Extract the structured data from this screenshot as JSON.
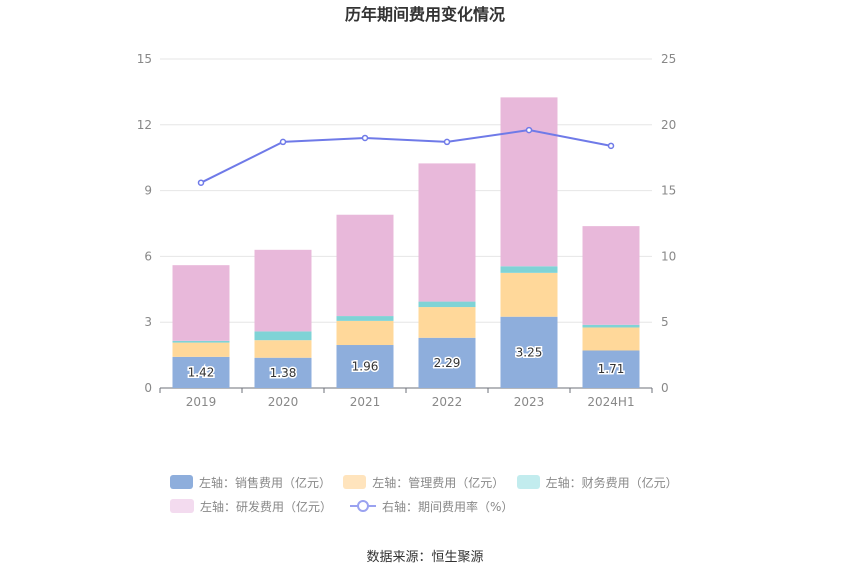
{
  "chart_data": {
    "type": "bar",
    "title": "历年期间费用变化情况",
    "categories": [
      "2019",
      "2020",
      "2021",
      "2022",
      "2023",
      "2024H1"
    ],
    "series": [
      {
        "name": "左轴：销售费用（亿元）",
        "axis": "left",
        "color": "#8eaedc",
        "values": [
          1.42,
          1.38,
          1.96,
          2.29,
          3.25,
          1.71
        ],
        "labels": [
          "1.42",
          "1.38",
          "1.96",
          "2.29",
          "3.25",
          "1.71"
        ]
      },
      {
        "name": "左轴：管理费用（亿元）",
        "axis": "left",
        "color": "#ffd89a",
        "values": [
          0.65,
          0.8,
          1.1,
          1.4,
          2.0,
          1.05
        ]
      },
      {
        "name": "左轴：财务费用（亿元）",
        "axis": "left",
        "color": "#7fd3d6",
        "values": [
          0.08,
          0.4,
          0.22,
          0.25,
          0.3,
          0.12
        ]
      },
      {
        "name": "左轴：研发费用（亿元）",
        "axis": "left",
        "color": "#e8b8da",
        "values": [
          3.45,
          3.72,
          4.62,
          6.3,
          7.7,
          4.5
        ]
      },
      {
        "name": "右轴：期间费用率（%）",
        "axis": "right",
        "type": "line",
        "color": "#6f7ae8",
        "values": [
          15.6,
          18.7,
          19.0,
          18.7,
          19.6,
          18.4
        ]
      }
    ],
    "left_axis": {
      "ylim": [
        0,
        15
      ],
      "ticks": [
        "0",
        "3",
        "6",
        "9",
        "12",
        "15"
      ]
    },
    "right_axis": {
      "ylim": [
        0,
        25
      ],
      "ticks": [
        "0",
        "5",
        "10",
        "15",
        "20",
        "25"
      ]
    },
    "legend_position": "bottom"
  },
  "source": "数据来源：恒生聚源",
  "legend": [
    {
      "label": "左轴：销售费用（亿元）",
      "color": "#8eaedc",
      "kind": "bar"
    },
    {
      "label": "左轴：管理费用（亿元）",
      "color": "#ffe4bd",
      "kind": "bar"
    },
    {
      "label": "左轴：财务费用（亿元）",
      "color": "#c2ecee",
      "kind": "bar"
    },
    {
      "label": "左轴：研发费用（亿元）",
      "color": "#f3dbef",
      "kind": "bar"
    },
    {
      "label": "右轴：期间费用率（%）",
      "color": "#9aa2f0",
      "kind": "line"
    }
  ]
}
